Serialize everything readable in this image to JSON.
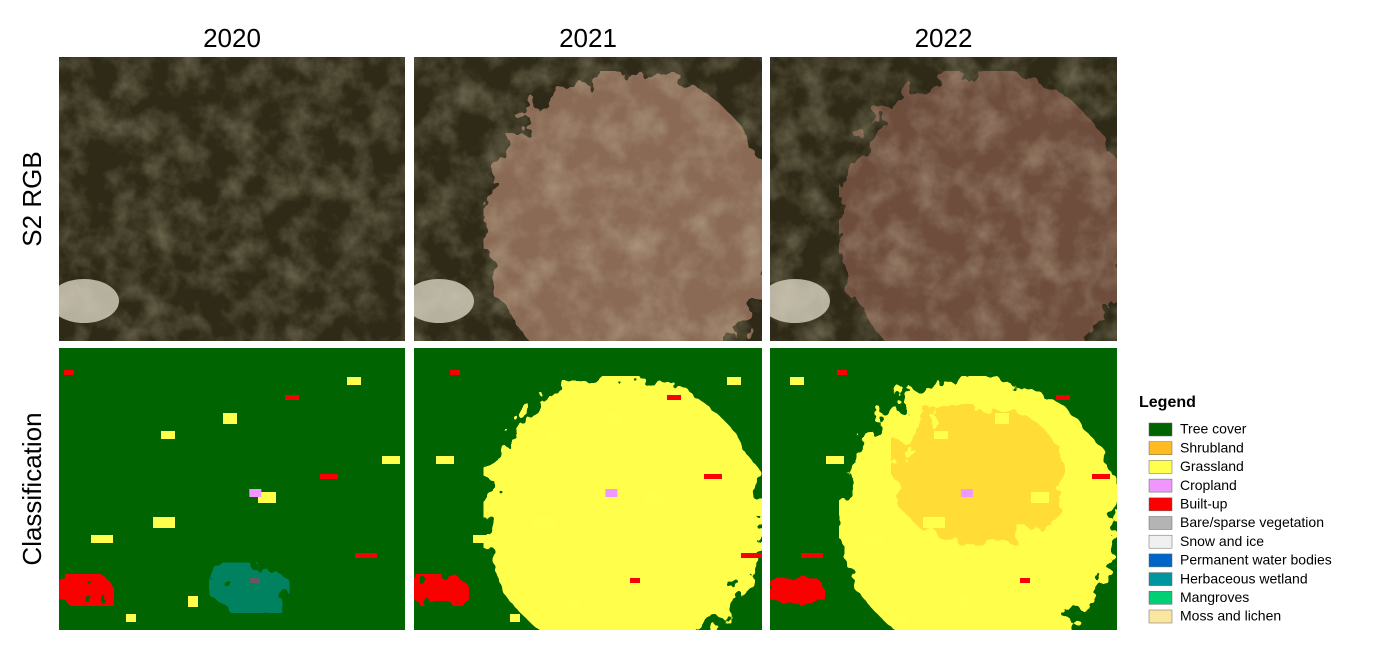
{
  "columns": [
    "2020",
    "2021",
    "2022"
  ],
  "rows": [
    "S2 RGB",
    "Classification"
  ],
  "legend": {
    "title": "Legend",
    "items": [
      {
        "label": "Tree cover",
        "color": "#006400"
      },
      {
        "label": "Shrubland",
        "color": "#ffbb22"
      },
      {
        "label": "Grassland",
        "color": "#ffff4c"
      },
      {
        "label": "Cropland",
        "color": "#f096ff"
      },
      {
        "label": "Built-up",
        "color": "#fa0000"
      },
      {
        "label": "Bare/sparse vegetation",
        "color": "#b4b4b4"
      },
      {
        "label": "Snow and ice",
        "color": "#f0f0f0"
      },
      {
        "label": "Permanent water bodies",
        "color": "#0064c8"
      },
      {
        "label": "Herbaceous wetland",
        "color": "#0096a0"
      },
      {
        "label": "Mangroves",
        "color": "#00cf75"
      },
      {
        "label": "Moss and lichen",
        "color": "#fae6a0"
      }
    ]
  }
}
